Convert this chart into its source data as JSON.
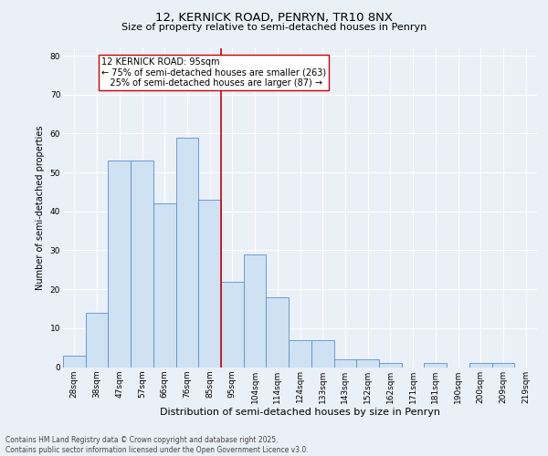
{
  "title1": "12, KERNICK ROAD, PENRYN, TR10 8NX",
  "title2": "Size of property relative to semi-detached houses in Penryn",
  "xlabel": "Distribution of semi-detached houses by size in Penryn",
  "ylabel": "Number of semi-detached properties",
  "categories": [
    "28sqm",
    "38sqm",
    "47sqm",
    "57sqm",
    "66sqm",
    "76sqm",
    "85sqm",
    "95sqm",
    "104sqm",
    "114sqm",
    "124sqm",
    "133sqm",
    "143sqm",
    "152sqm",
    "162sqm",
    "171sqm",
    "181sqm",
    "190sqm",
    "200sqm",
    "209sqm",
    "219sqm"
  ],
  "values": [
    3,
    14,
    53,
    53,
    42,
    59,
    43,
    22,
    29,
    18,
    7,
    7,
    2,
    2,
    1,
    0,
    1,
    0,
    1,
    1,
    0
  ],
  "bar_color": "#cfe2f3",
  "bar_edge_color": "#5b8fc9",
  "vline_index": 7,
  "vline_color": "#cc0000",
  "annotation_line1": "12 KERNICK ROAD: 95sqm",
  "annotation_line2": "← 75% of semi-detached houses are smaller (263)",
  "annotation_line3": "   25% of semi-detached houses are larger (87) →",
  "annotation_box_color": "#ffffff",
  "annotation_box_edge": "#cc0000",
  "ylim": [
    0,
    82
  ],
  "yticks": [
    0,
    10,
    20,
    30,
    40,
    50,
    60,
    70,
    80
  ],
  "footer": "Contains HM Land Registry data © Crown copyright and database right 2025.\nContains public sector information licensed under the Open Government Licence v3.0.",
  "background_color": "#eaf0f8",
  "plot_background": "#eaf0f8",
  "title1_fontsize": 9.5,
  "title2_fontsize": 8,
  "xlabel_fontsize": 8,
  "ylabel_fontsize": 7,
  "tick_fontsize": 6.5,
  "annotation_fontsize": 7,
  "footer_fontsize": 5.5
}
